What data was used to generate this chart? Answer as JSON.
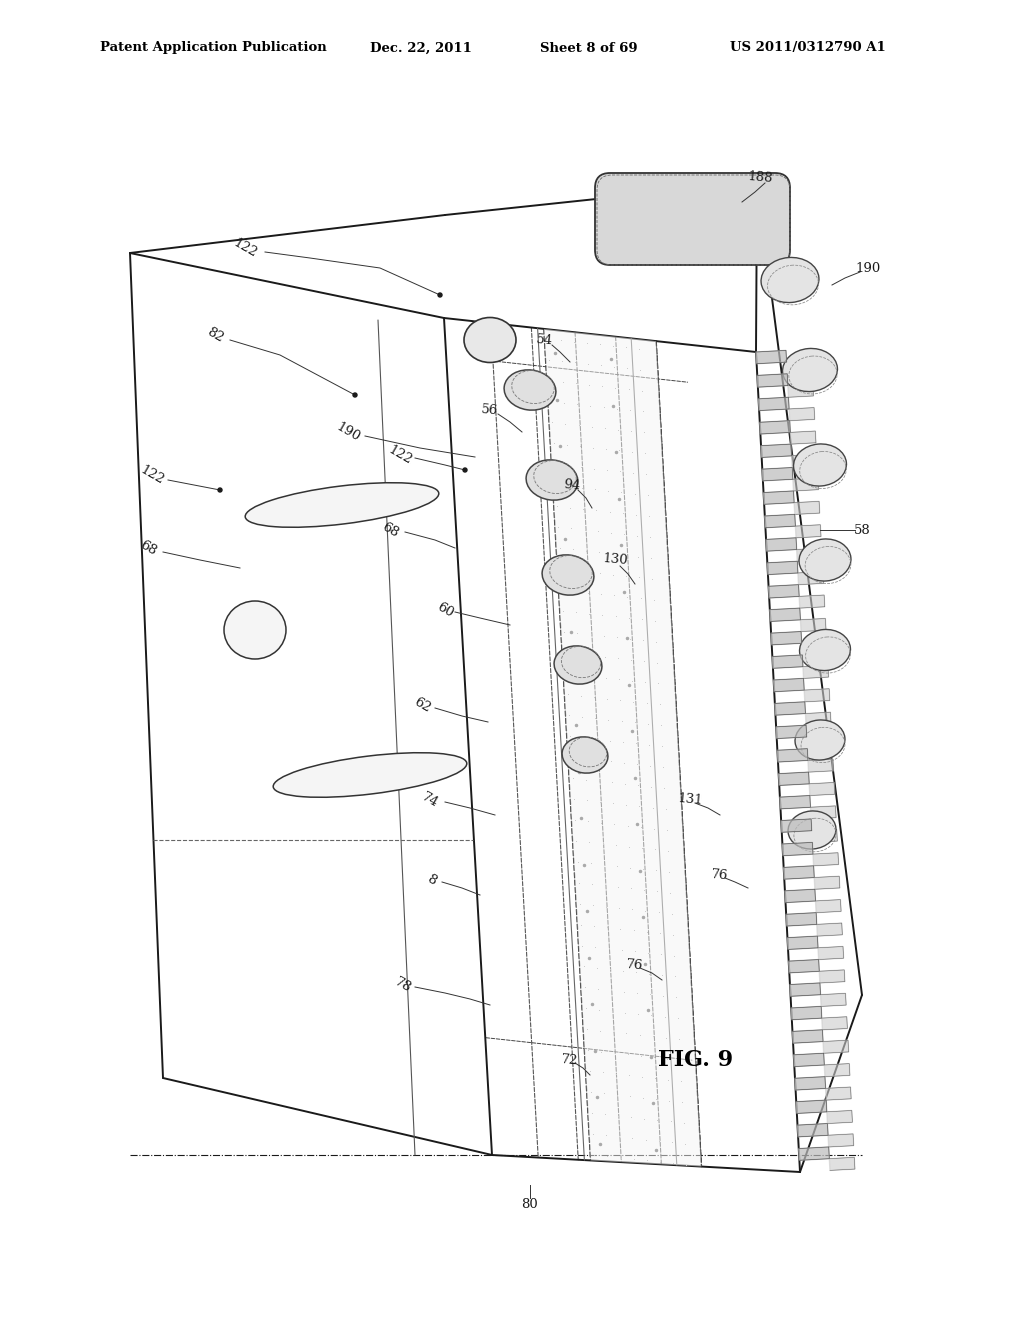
{
  "bg_color": "#ffffff",
  "line_color": "#1a1a1a",
  "header_text": "Patent Application Publication",
  "header_date": "Dec. 22, 2011",
  "header_sheet": "Sheet 8 of 69",
  "header_patent": "US 2011/0312790 A1",
  "fig_label": "FIG. 9",
  "lw_main": 1.4,
  "lw_thin": 0.8,
  "lw_dashed": 0.7
}
